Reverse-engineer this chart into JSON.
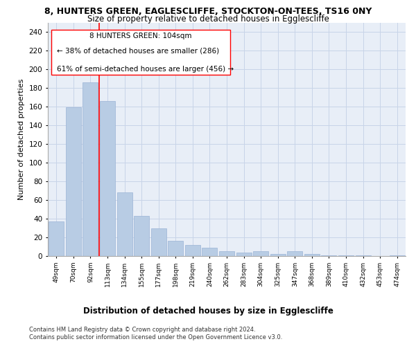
{
  "title1": "8, HUNTERS GREEN, EAGLESCLIFFE, STOCKTON-ON-TEES, TS16 0NY",
  "title2": "Size of property relative to detached houses in Egglescliffe",
  "xlabel": "Distribution of detached houses by size in Egglescliffe",
  "ylabel": "Number of detached properties",
  "categories": [
    "49sqm",
    "70sqm",
    "92sqm",
    "113sqm",
    "134sqm",
    "155sqm",
    "177sqm",
    "198sqm",
    "219sqm",
    "240sqm",
    "262sqm",
    "283sqm",
    "304sqm",
    "325sqm",
    "347sqm",
    "368sqm",
    "389sqm",
    "410sqm",
    "432sqm",
    "453sqm",
    "474sqm"
  ],
  "values": [
    37,
    159,
    186,
    166,
    68,
    43,
    30,
    16,
    12,
    9,
    5,
    4,
    5,
    2,
    5,
    2,
    1,
    1,
    1,
    0,
    1
  ],
  "bar_color": "#b8cce4",
  "bar_edge_color": "#9ab3d5",
  "redline_x": 2.5,
  "annotation_text1": "8 HUNTERS GREEN: 104sqm",
  "annotation_text2": "← 38% of detached houses are smaller (286)",
  "annotation_text3": "61% of semi-detached houses are larger (456) →",
  "footer1": "Contains HM Land Registry data © Crown copyright and database right 2024.",
  "footer2": "Contains public sector information licensed under the Open Government Licence v3.0.",
  "ylim": [
    0,
    250
  ],
  "yticks": [
    0,
    20,
    40,
    60,
    80,
    100,
    120,
    140,
    160,
    180,
    200,
    220,
    240
  ],
  "bg_color": "#ffffff",
  "grid_color": "#c8d4e8",
  "title1_fontsize": 9,
  "title2_fontsize": 8.5,
  "xlabel_fontsize": 8.5,
  "ylabel_fontsize": 8,
  "annot_fontsize": 7.5,
  "footer_fontsize": 6
}
